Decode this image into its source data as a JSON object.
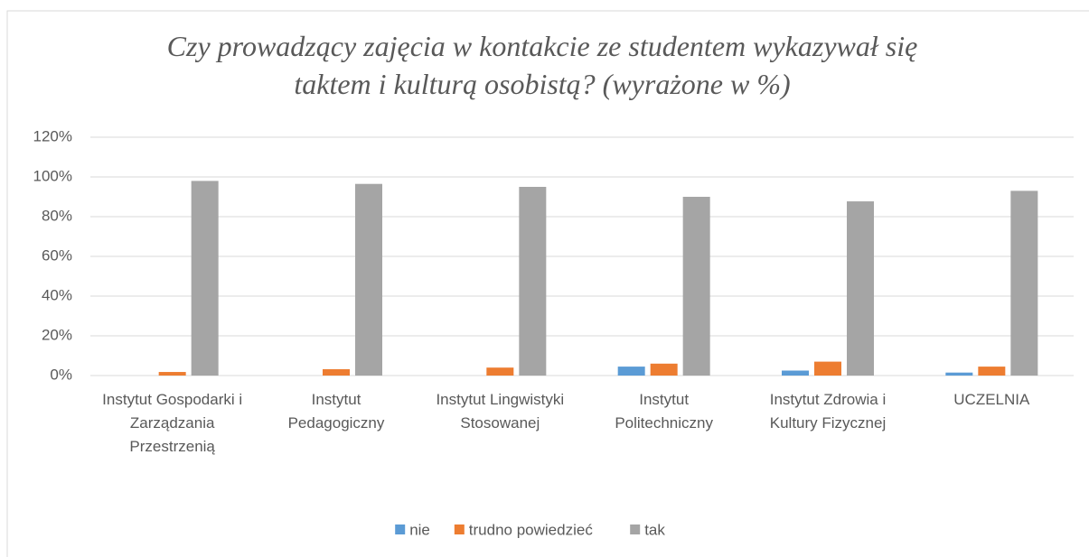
{
  "chart_data": {
    "type": "bar",
    "title": "Czy prowadzący zajęcia w kontakcie ze studentem wykazywał się taktem i kulturą osobistą? (wyrażone w %)",
    "categories": [
      "Instytut Gospodarki i Zarządzania Przestrzenią",
      "Instytut Pedagogiczny",
      "Instytut Lingwistyki Stosowanej",
      "Instytut Politechniczny",
      "Instytut Zdrowia i Kultury Fizycznej",
      "UCZELNIA"
    ],
    "series": [
      {
        "name": "nie",
        "color": "#5b9bd5",
        "values": [
          0,
          0,
          0,
          4.5,
          2.5,
          1.5
        ]
      },
      {
        "name": "trudno powiedzieć",
        "color": "#ed7d31",
        "values": [
          1.8,
          3.2,
          4,
          6,
          7,
          4.5
        ]
      },
      {
        "name": "tak",
        "color": "#a5a5a5",
        "values": [
          98,
          96.5,
          95,
          90,
          87.7,
          93
        ]
      }
    ],
    "ylim": [
      0,
      120
    ],
    "yticks": [
      {
        "value": 0,
        "label": "0%"
      },
      {
        "value": 20,
        "label": "20%"
      },
      {
        "value": 40,
        "label": "40%"
      },
      {
        "value": 60,
        "label": "60%"
      },
      {
        "value": 80,
        "label": "80%"
      },
      {
        "value": 100,
        "label": "100%"
      },
      {
        "value": 120,
        "label": "120%"
      }
    ],
    "grid": true,
    "legend": "bottom"
  }
}
